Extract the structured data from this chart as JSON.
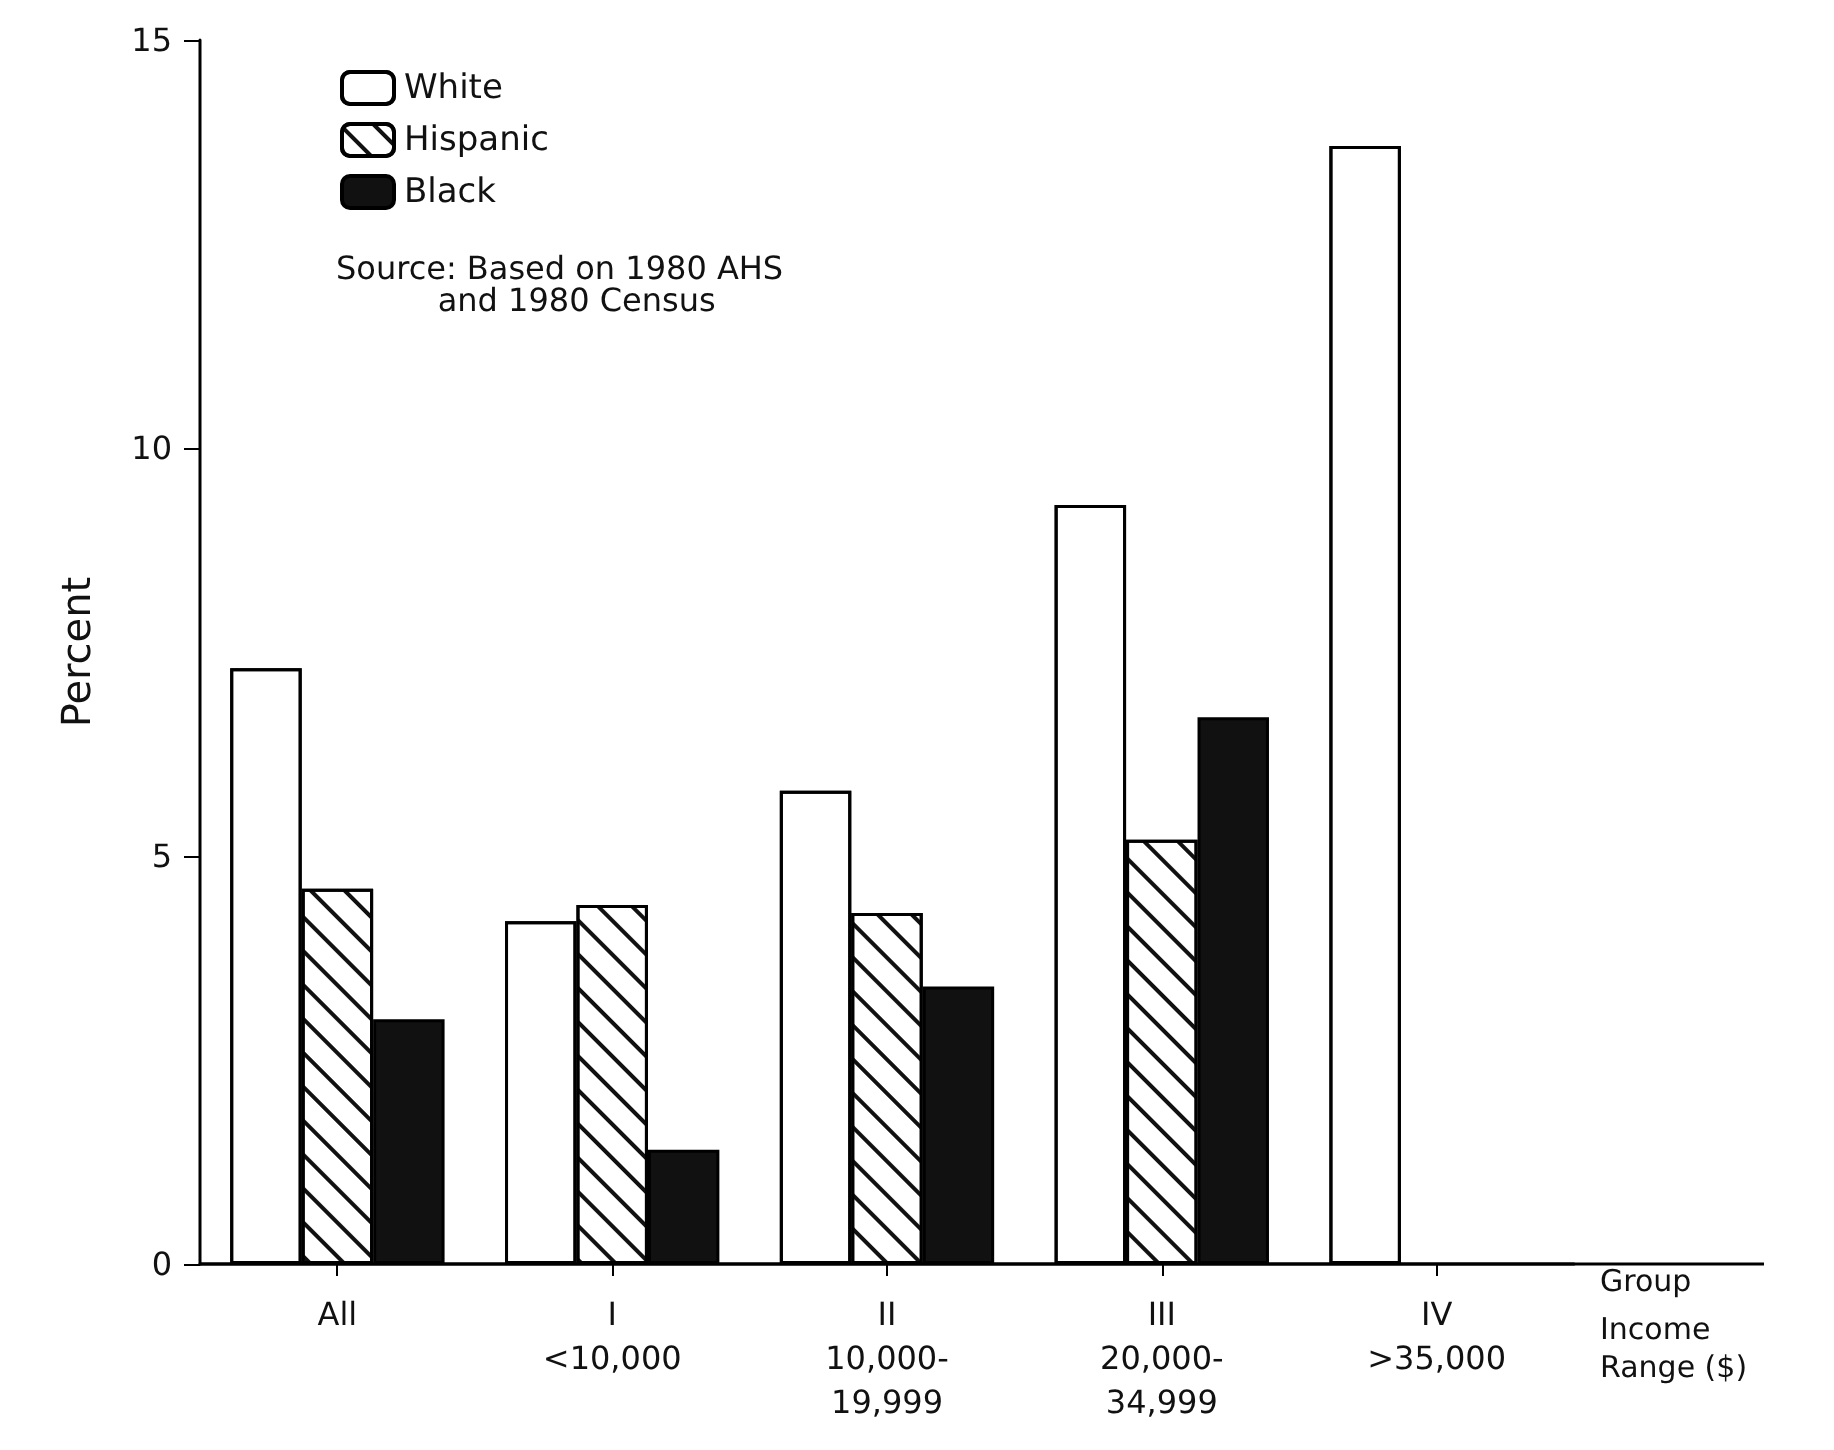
{
  "chart_data": {
    "type": "bar",
    "categories": [
      "All",
      "I\n<10,000",
      "II\n10,000-\n19,999",
      "III\n20,000-\n34,999",
      "IV\n>35,000"
    ],
    "series": [
      {
        "name": "White",
        "color": "#ffffff",
        "values": [
          7.3,
          4.2,
          5.8,
          9.3,
          13.7
        ]
      },
      {
        "name": "Hispanic",
        "color": "#ffffff",
        "values": [
          4.6,
          4.4,
          4.3,
          5.2,
          null
        ]
      },
      {
        "name": "Black",
        "color": "#111111",
        "values": [
          3.0,
          1.4,
          3.4,
          6.7,
          null
        ]
      }
    ],
    "xlabel": "Group",
    "ylabel": "Percent",
    "annotations": [
      "Source: Based on 1980 AHS\n          and 1980 Census",
      "Income\nRange ($)"
    ],
    "ylim": [
      0,
      15
    ],
    "yticks": [
      0,
      5,
      10,
      15
    ],
    "grid": false,
    "legend": "top left"
  }
}
